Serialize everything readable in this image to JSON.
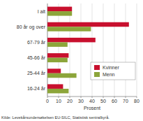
{
  "chart_data": {
    "type": "bar",
    "orientation": "horizontal",
    "categories": [
      "I alt",
      "80 år og over",
      "67-79 år",
      "45-66 år",
      "25-44 år",
      "16-24 år"
    ],
    "series": [
      {
        "name": "Kvinner",
        "color": "#c8102e",
        "values": [
          22,
          73,
          43,
          19,
          12,
          14
        ]
      },
      {
        "name": "Menn",
        "color": "#8ca53a",
        "values": [
          22,
          39,
          18,
          18,
          26,
          19
        ]
      }
    ],
    "x_label": "Prosent",
    "source": "Kilde: Levekårsundersøkelsen EU-SILC, Statistisk sentralbyrå.",
    "xlim": [
      0,
      80
    ],
    "xticks": [
      0,
      10,
      20,
      30,
      40,
      50,
      60,
      70,
      80
    ],
    "grid": true,
    "legend": "right"
  }
}
